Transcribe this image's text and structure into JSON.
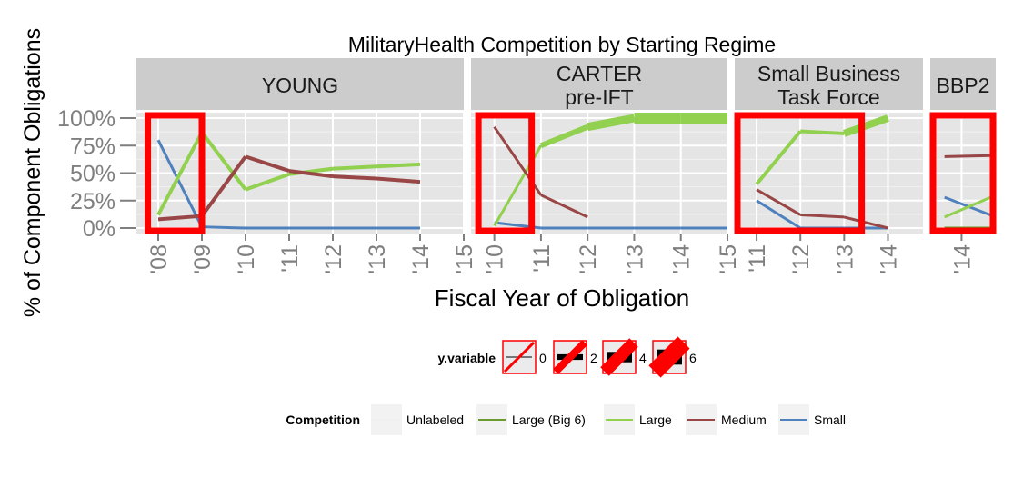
{
  "chart_data": {
    "type": "line",
    "title": "MilitaryHealth Competition by Starting Regime",
    "xlabel": "Fiscal Year of Obligation",
    "ylabel": "% of Component Obligations",
    "y_ticks": [
      "0%",
      "25%",
      "50%",
      "75%",
      "100%"
    ],
    "ylim": [
      0,
      1
    ],
    "grid": true,
    "colors": {
      "Unlabeled": "#f0f0f0",
      "Large (Big 6)": "#6b9a2e",
      "Large": "#92d050",
      "Medium": "#984646",
      "Small": "#4f81bd",
      "highlight": "#ff0000",
      "strip": "#cccccc",
      "panel": "#e5e5e5"
    },
    "panels": [
      {
        "label": [
          "YOUNG"
        ],
        "x_ticks": [
          "'08",
          "'09",
          "'10",
          "'11",
          "'12",
          "'13",
          "'14",
          "'15"
        ],
        "xlim": [
          2007.5,
          2015
        ],
        "highlight": [
          [
            2007.7,
            2009
          ]
        ],
        "series": [
          {
            "name": "Small",
            "x": [
              2008,
              2009,
              2010,
              2011,
              2012,
              2013,
              2014
            ],
            "values": [
              0.8,
              0.01,
              0.0,
              0.0,
              0.0,
              0.0,
              0.0
            ],
            "widths": [
              3
            ]
          },
          {
            "name": "Large",
            "x": [
              2008,
              2009,
              2010,
              2011,
              2012,
              2013,
              2014
            ],
            "values": [
              0.12,
              0.87,
              0.35,
              0.49,
              0.54,
              0.56,
              0.58
            ],
            "widths": [
              4
            ]
          },
          {
            "name": "Medium",
            "x": [
              2008,
              2009,
              2010,
              2011,
              2012,
              2013,
              2014
            ],
            "values": [
              0.08,
              0.11,
              0.65,
              0.52,
              0.47,
              0.45,
              0.42
            ],
            "widths": [
              4
            ]
          }
        ]
      },
      {
        "label": [
          "CARTER",
          "pre-IFT"
        ],
        "x_ticks": [
          "'10",
          "'11",
          "'12",
          "'13",
          "'14",
          "'15"
        ],
        "xlim": [
          2009.5,
          2015
        ],
        "highlight": [
          [
            2009.6,
            2010.8
          ]
        ],
        "series": [
          {
            "name": "Small",
            "x": [
              2010,
              2011,
              2012,
              2013,
              2014,
              2015
            ],
            "values": [
              0.05,
              0.0,
              0.0,
              0.0,
              0.0,
              0.0
            ],
            "widths": [
              3
            ]
          },
          {
            "name": "Large",
            "x": [
              2010,
              2011,
              2012,
              2013,
              2014,
              2015
            ],
            "values": [
              0.02,
              0.75,
              0.92,
              1.0,
              1.0,
              1.0
            ],
            "widths": [
              3,
              6,
              9,
              12,
              12
            ]
          },
          {
            "name": "Medium",
            "x": [
              2010,
              2011,
              2012
            ],
            "values": [
              0.92,
              0.3,
              0.1
            ],
            "widths": [
              3
            ]
          }
        ]
      },
      {
        "label": [
          "Small Business",
          "Task Force"
        ],
        "x_ticks": [
          "'11",
          "'12",
          "'13",
          "'14"
        ],
        "xlim": [
          2010.5,
          2014.8
        ],
        "highlight": [
          [
            2010.5,
            2013.4
          ]
        ],
        "series": [
          {
            "name": "Small",
            "x": [
              2011,
              2012,
              2013,
              2014
            ],
            "values": [
              0.25,
              0.0,
              0.0,
              0.0
            ],
            "widths": [
              3
            ]
          },
          {
            "name": "Large",
            "x": [
              2011,
              2012,
              2013,
              2014
            ],
            "values": [
              0.4,
              0.88,
              0.86,
              1.0
            ],
            "widths": [
              4,
              4,
              8
            ]
          },
          {
            "name": "Medium",
            "x": [
              2011,
              2012,
              2013,
              2014
            ],
            "values": [
              0.35,
              0.12,
              0.1,
              0.0
            ],
            "widths": [
              3
            ]
          }
        ]
      },
      {
        "label": [
          "BBP2"
        ],
        "x_ticks": [
          "'14"
        ],
        "xlim": [
          2013.45,
          2014.6
        ],
        "highlight": [
          [
            2013.45,
            2014.6
          ]
        ],
        "series": [
          {
            "name": "Large (Big 6)",
            "x": [
              2013.7,
              2014.6
            ],
            "values": [
              0.0,
              0.0
            ],
            "widths": [
              3
            ]
          },
          {
            "name": "Small",
            "x": [
              2013.7,
              2014.6
            ],
            "values": [
              0.28,
              0.1
            ],
            "widths": [
              3
            ]
          },
          {
            "name": "Large",
            "x": [
              2013.7,
              2014.6
            ],
            "values": [
              0.1,
              0.3
            ],
            "widths": [
              3
            ]
          },
          {
            "name": "Medium",
            "x": [
              2013.7,
              2014.6
            ],
            "values": [
              0.65,
              0.66
            ],
            "widths": [
              3
            ]
          }
        ]
      }
    ],
    "legend_size": {
      "title": "y.variable",
      "entries": [
        "0",
        "2",
        "4",
        "6"
      ],
      "values": [
        0,
        2,
        4,
        6
      ]
    },
    "legend_color": {
      "title": "Competition",
      "entries": [
        "Unlabeled",
        "Large (Big 6)",
        "Large",
        "Medium",
        "Small"
      ]
    }
  }
}
